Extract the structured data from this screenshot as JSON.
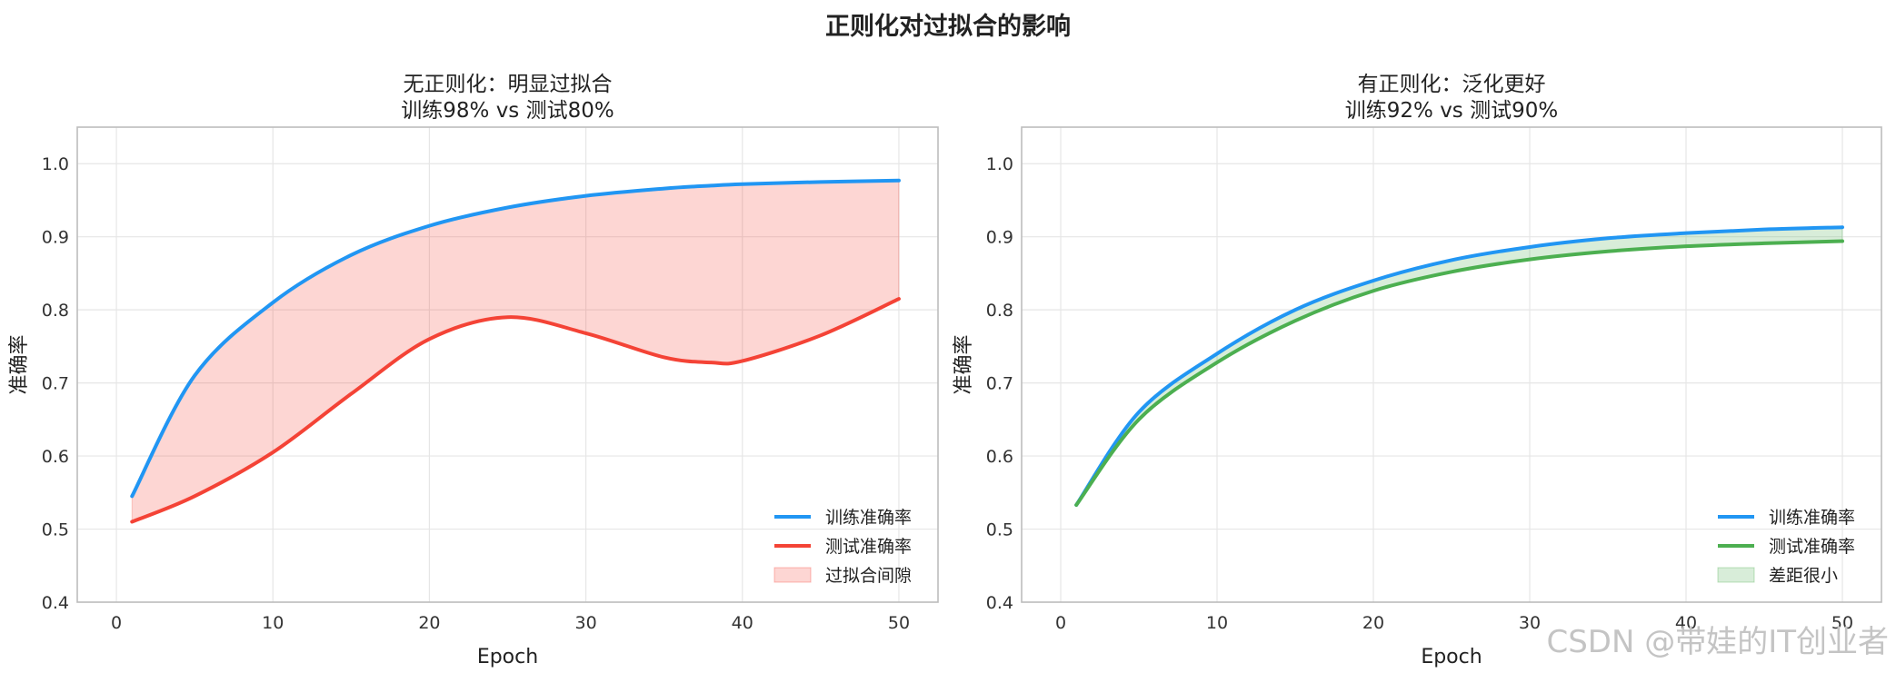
{
  "figure": {
    "suptitle": "正则化对过拟合的影响",
    "watermark": "CSDN @带娃的IT创业者"
  },
  "chart_data": [
    {
      "type": "line",
      "title": "无正则化：明显过拟合\n训练98% vs 测试80%",
      "title_lines": [
        "无正则化：明显过拟合",
        "训练98% vs 测试80%"
      ],
      "xlabel": "Epoch",
      "ylabel": "准确率",
      "xlim": [
        -2.5,
        52.5
      ],
      "ylim": [
        0.4,
        1.05
      ],
      "xticks": [
        0,
        10,
        20,
        30,
        40,
        50
      ],
      "yticks": [
        0.4,
        0.5,
        0.6,
        0.7,
        0.8,
        0.9,
        1.0
      ],
      "grid": true,
      "legend_position": "lower-right",
      "x": [
        1,
        5,
        10,
        15,
        20,
        25,
        30,
        35,
        38,
        40,
        45,
        50
      ],
      "series": [
        {
          "name": "训练准确率",
          "color": "#2196F3",
          "values": [
            0.545,
            0.71,
            0.81,
            0.875,
            0.915,
            0.94,
            0.956,
            0.966,
            0.97,
            0.972,
            0.975,
            0.977
          ]
        },
        {
          "name": "测试准确率",
          "color": "#F44336",
          "values": [
            0.51,
            0.545,
            0.605,
            0.685,
            0.76,
            0.79,
            0.768,
            0.735,
            0.728,
            0.73,
            0.765,
            0.815
          ]
        }
      ],
      "fill": {
        "name": "过拟合间隙",
        "color": "#F44336",
        "opacity": 0.22
      }
    },
    {
      "type": "line",
      "title": "有正则化：泛化更好\n训练92% vs 测试90%",
      "title_lines": [
        "有正则化：泛化更好",
        "训练92% vs 测试90%"
      ],
      "xlabel": "Epoch",
      "ylabel": "准确率",
      "xlim": [
        -2.5,
        52.5
      ],
      "ylim": [
        0.4,
        1.05
      ],
      "xticks": [
        0,
        10,
        20,
        30,
        40,
        50
      ],
      "yticks": [
        0.4,
        0.5,
        0.6,
        0.7,
        0.8,
        0.9,
        1.0
      ],
      "grid": true,
      "legend_position": "lower-right",
      "x": [
        1,
        5,
        10,
        15,
        20,
        25,
        30,
        35,
        40,
        45,
        50
      ],
      "series": [
        {
          "name": "训练准确率",
          "color": "#2196F3",
          "values": [
            0.533,
            0.66,
            0.74,
            0.8,
            0.84,
            0.868,
            0.886,
            0.898,
            0.905,
            0.91,
            0.913
          ]
        },
        {
          "name": "测试准确率",
          "color": "#4CAF50",
          "values": [
            0.533,
            0.65,
            0.728,
            0.785,
            0.826,
            0.852,
            0.869,
            0.88,
            0.887,
            0.891,
            0.894
          ]
        }
      ],
      "fill": {
        "name": "差距很小",
        "color": "#4CAF50",
        "opacity": 0.22
      }
    }
  ]
}
